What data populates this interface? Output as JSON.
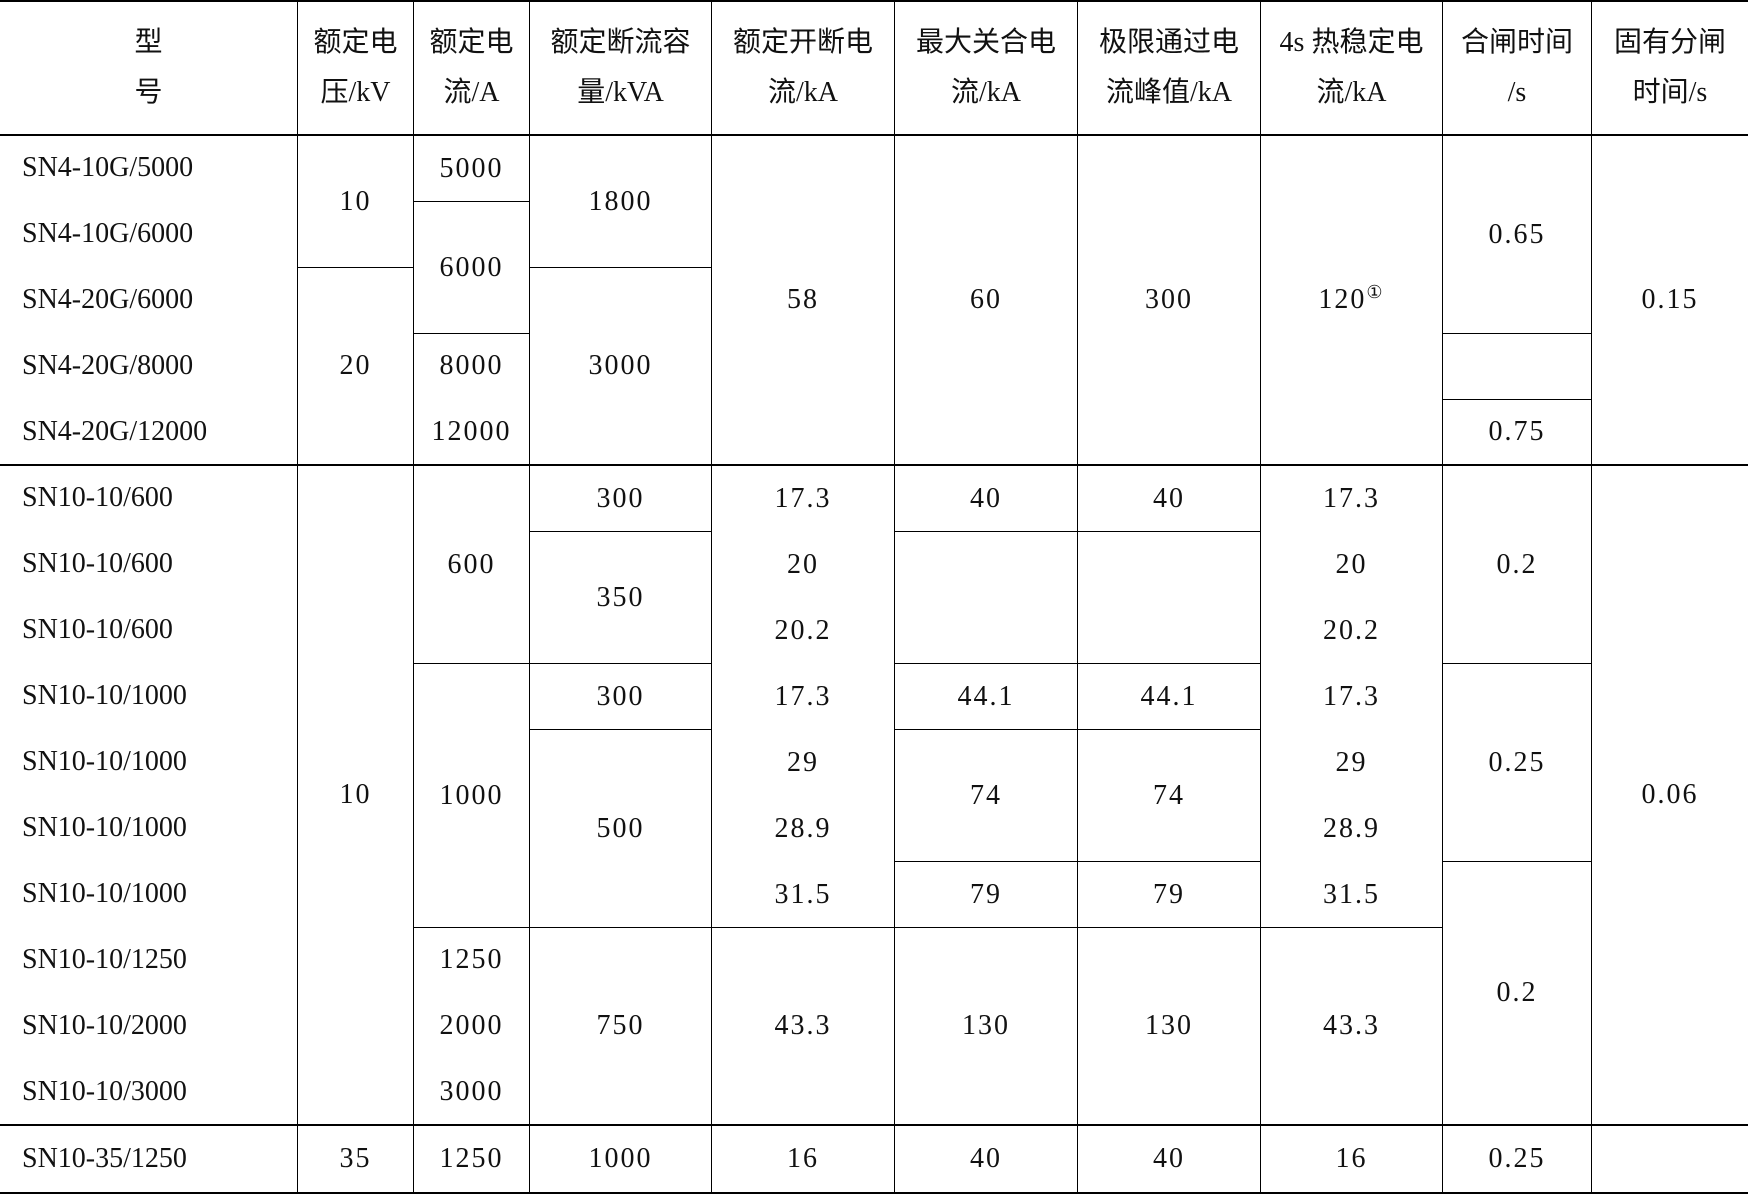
{
  "table": {
    "header": [
      [
        "型号"
      ],
      [
        "额定电",
        "压/kV"
      ],
      [
        "额定电",
        "流/A"
      ],
      [
        "额定断流容",
        "量/kVA"
      ],
      [
        "额定开断电",
        "流/kA"
      ],
      [
        "最大关合电",
        "流/kA"
      ],
      [
        "极限通过电",
        "流峰值/kA"
      ],
      [
        "4s 热稳定电",
        "流/kA"
      ],
      [
        "合闸时间",
        "/s"
      ],
      [
        "固有分闸",
        "时间/s"
      ]
    ],
    "models": [
      "SN4-10G/5000",
      "SN4-10G/6000",
      "SN4-20G/6000",
      "SN4-20G/8000",
      "SN4-20G/12000",
      "SN10-10/600",
      "SN10-10/600",
      "SN10-10/600",
      "SN10-10/1000",
      "SN10-10/1000",
      "SN10-10/1000",
      "SN10-10/1000",
      "SN10-10/1250",
      "SN10-10/2000",
      "SN10-10/3000",
      "SN10-35/1250"
    ],
    "columns": [
      [
        "10",
        "20",
        "10",
        "35"
      ],
      [
        "5000",
        "6000",
        [
          "8000",
          "12000"
        ],
        "600",
        "1000",
        [
          "1250",
          "2000",
          "3000"
        ],
        "1250"
      ],
      [
        "1800",
        "3000",
        "300",
        "350",
        "300",
        "500",
        "750",
        "1000"
      ],
      [
        "58",
        [
          "17.3",
          "20",
          "20.2",
          "17.3",
          "29",
          "28.9",
          "31.5"
        ],
        "43.3",
        "16"
      ],
      [
        "60",
        "40",
        "44.1",
        "74",
        "79",
        "130",
        "40"
      ],
      [
        "300",
        "40",
        "44.1",
        "74",
        "79",
        "130",
        "40"
      ],
      [
        "120",
        [
          "17.3",
          "20",
          "20.2",
          "17.3",
          "29",
          "28.9",
          "31.5"
        ],
        "43.3",
        "16"
      ],
      [
        "0.65",
        "0.75",
        "0.2",
        "0.25",
        "0.2",
        "0.25"
      ],
      [
        "0.15",
        "0.06"
      ]
    ],
    "footnote_mark": "①"
  }
}
